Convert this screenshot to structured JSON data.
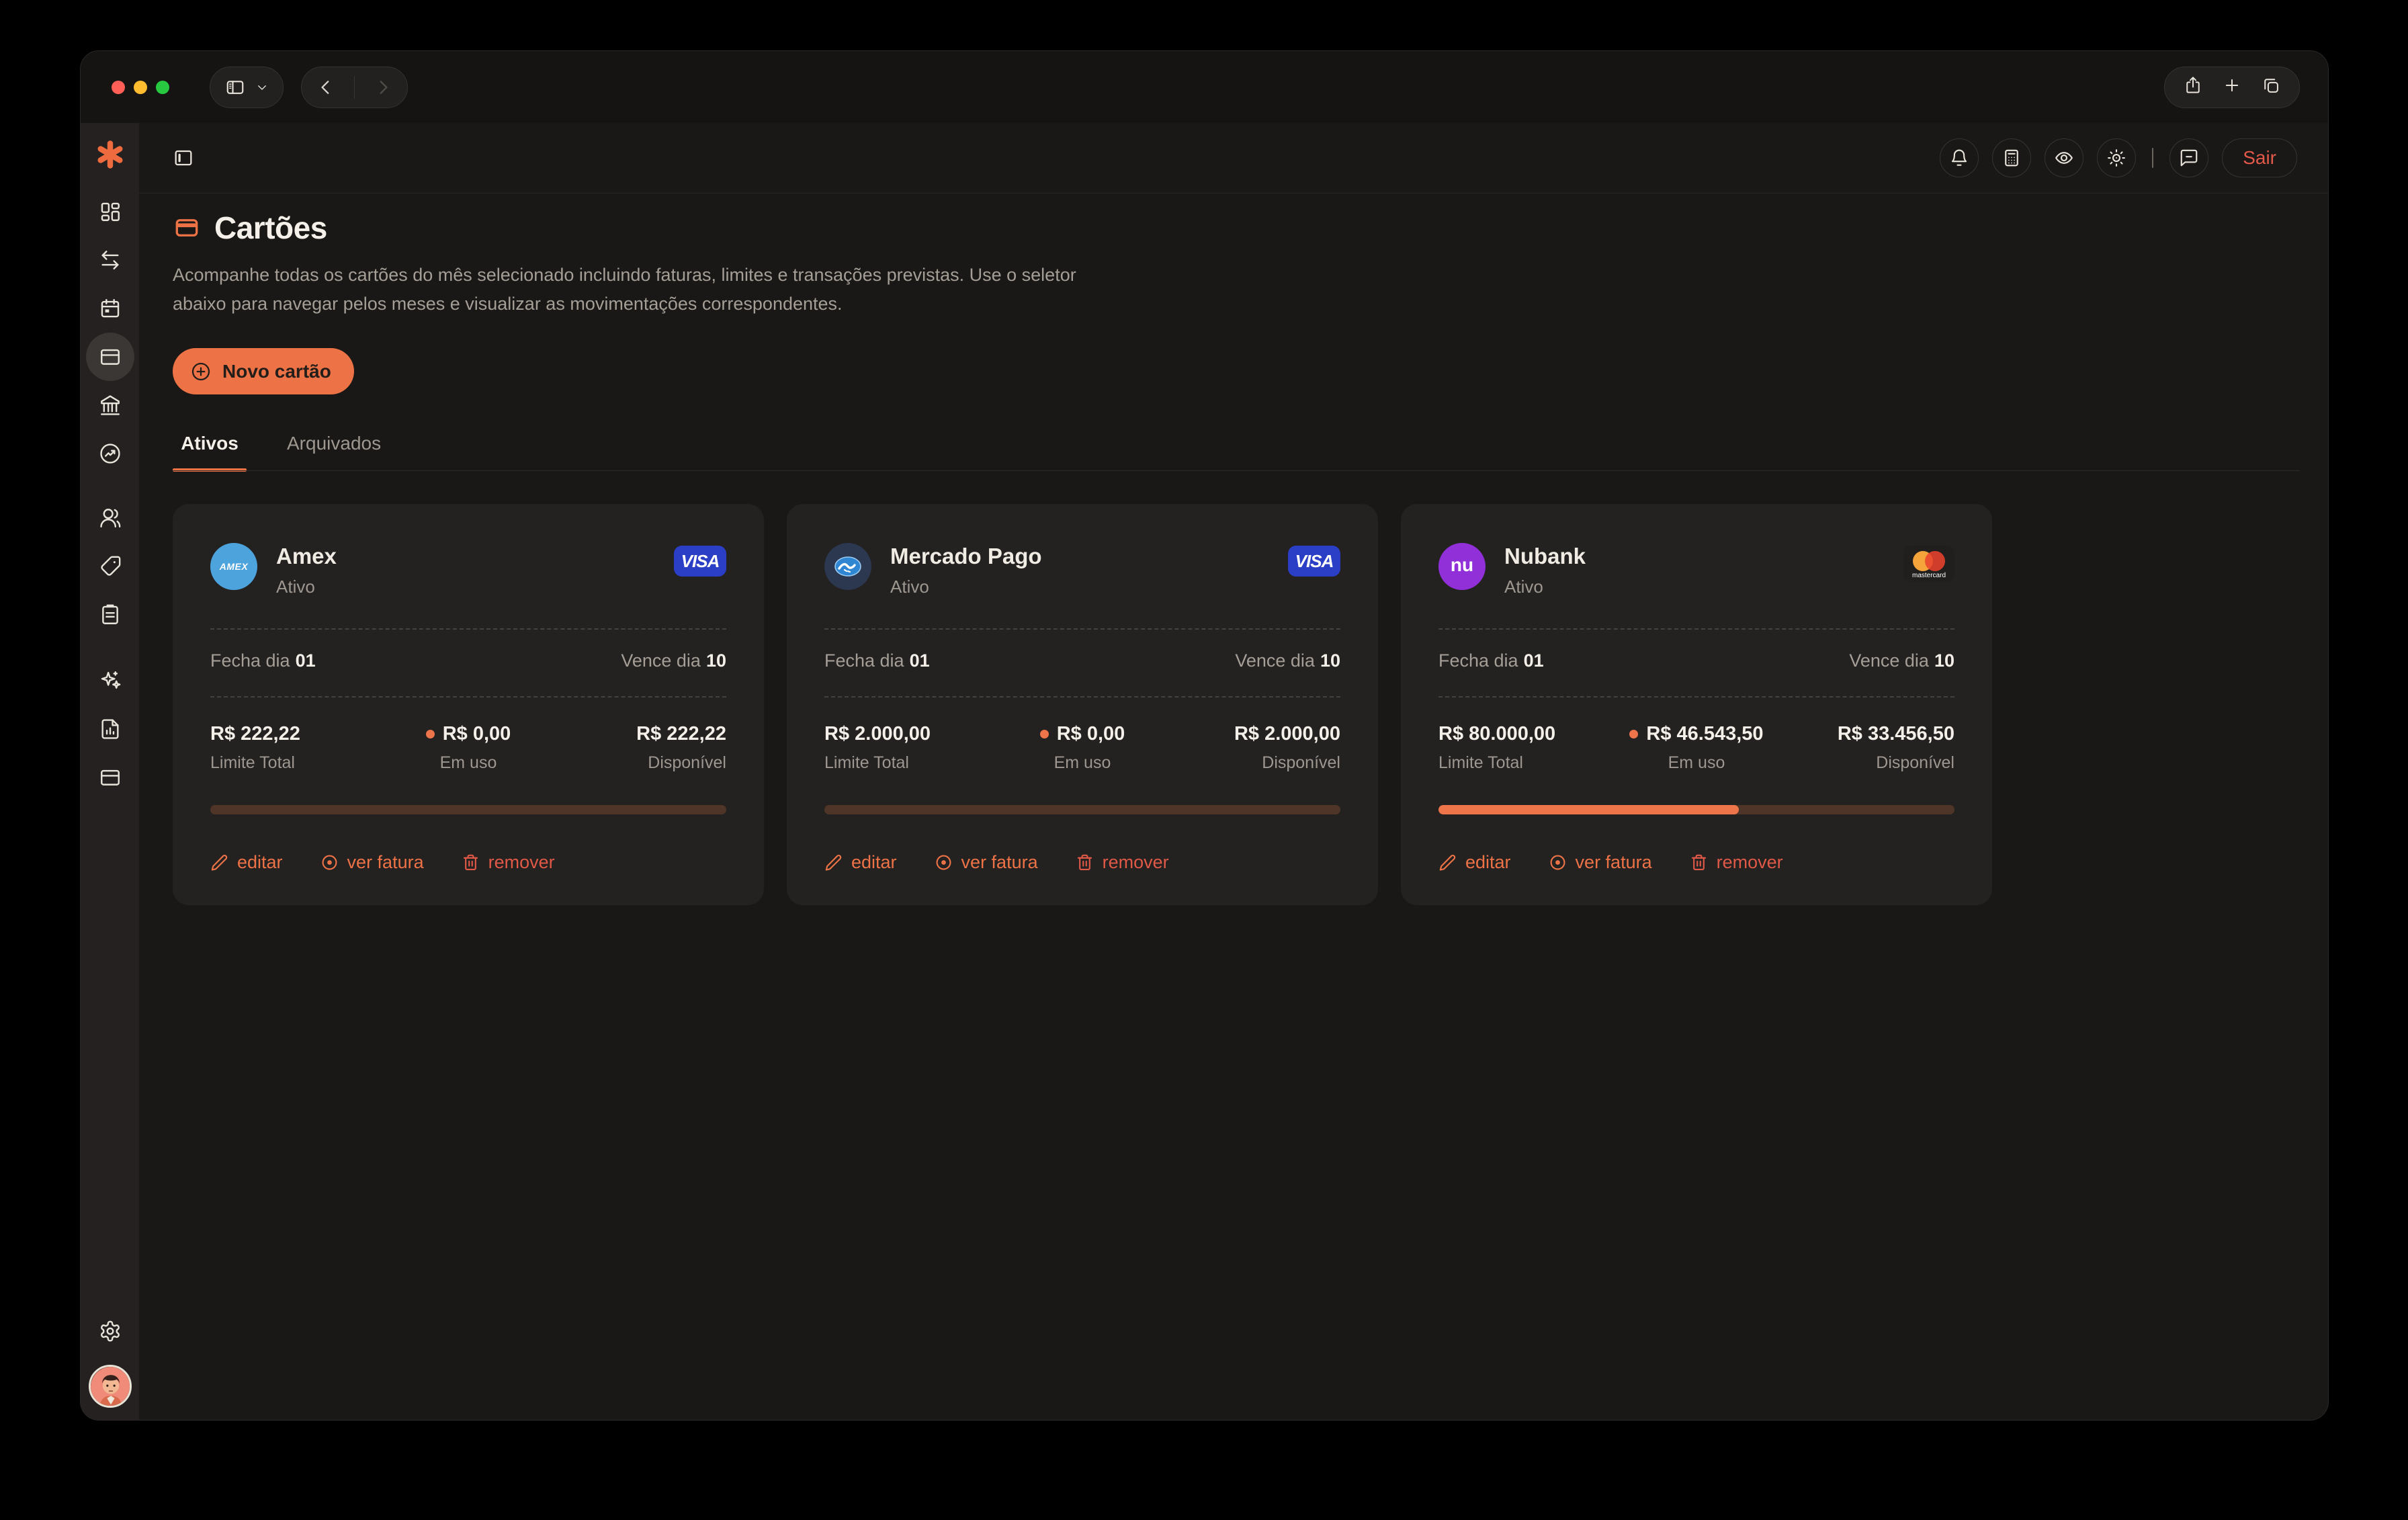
{
  "titlebar": {
    "left_icons": [
      "sidebar-toggle-icon",
      "chevron-down-icon",
      "back-icon",
      "forward-icon"
    ],
    "right_icons": [
      "share-icon",
      "new-tab-icon",
      "tab-overview-icon"
    ],
    "window_buttons": [
      "close",
      "minimize",
      "maximize"
    ]
  },
  "header": {
    "icons": [
      "bell-icon",
      "calculator-icon",
      "eye-icon",
      "theme-sun-icon",
      "chat-icon"
    ],
    "logout_label": "Sair"
  },
  "sidebar": {
    "icons": [
      "logo-asterisk",
      "dashboard",
      "transfers",
      "calendar",
      "cards",
      "bank",
      "performance",
      "users",
      "tags",
      "notes",
      "ai-sparkles",
      "reports",
      "subscriptions"
    ],
    "active_item": "cards",
    "footer_icons": [
      "settings",
      "user-avatar"
    ]
  },
  "page": {
    "title": "Cartões",
    "description": "Acompanhe todas os cartões do mês selecionado incluindo faturas, limites e transações previstas. Use o seletor abaixo para navegar pelos meses e visualizar as movimentações correspondentes.",
    "new_card_label": "Novo cartão",
    "tabs": [
      {
        "label": "Ativos",
        "active": true
      },
      {
        "label": "Arquivados",
        "active": false
      }
    ]
  },
  "cards": [
    {
      "name": "Amex",
      "status": "Ativo",
      "avatar_text": "AMEX",
      "avatar_color": "#4DA3DC",
      "brand": "visa",
      "brand_label": "VISA",
      "close_label": "Fecha dia",
      "close_day": "01",
      "due_label": "Vence dia",
      "due_day": "10",
      "limit_value": "R$ 222,22",
      "limit_label": "Limite Total",
      "used_value": "R$ 0,00",
      "used_label": "Em uso",
      "available_value": "R$ 222,22",
      "available_label": "Disponível",
      "progress_pct": 0,
      "actions": {
        "edit": "editar",
        "invoice": "ver fatura",
        "remove": "remover"
      }
    },
    {
      "name": "Mercado Pago",
      "status": "Ativo",
      "avatar_color": "#2B3850",
      "brand": "visa",
      "brand_label": "VISA",
      "close_label": "Fecha dia",
      "close_day": "01",
      "due_label": "Vence dia",
      "due_day": "10",
      "limit_value": "R$ 2.000,00",
      "limit_label": "Limite Total",
      "used_value": "R$ 0,00",
      "used_label": "Em uso",
      "available_value": "R$ 2.000,00",
      "available_label": "Disponível",
      "progress_pct": 0,
      "actions": {
        "edit": "editar",
        "invoice": "ver fatura",
        "remove": "remover"
      }
    },
    {
      "name": "Nubank",
      "status": "Ativo",
      "avatar_text": "nu",
      "avatar_color": "#9130D9",
      "brand": "mastercard",
      "brand_label": "mastercard",
      "close_label": "Fecha dia",
      "close_day": "01",
      "due_label": "Vence dia",
      "due_day": "10",
      "limit_value": "R$ 80.000,00",
      "limit_label": "Limite Total",
      "used_value": "R$ 46.543,50",
      "used_label": "Em uso",
      "available_value": "R$ 33.456,50",
      "available_label": "Disponível",
      "progress_pct": 58.2,
      "actions": {
        "edit": "editar",
        "invoice": "ver fatura",
        "remove": "remover"
      }
    }
  ],
  "colors": {
    "accent": "#ED7347",
    "danger": "#E05947",
    "visa_blue": "#2B3EC6",
    "mastercard_red": "#E8432E",
    "mastercard_yellow": "#F5A33B",
    "progress_track": "#4E3527",
    "card_bg": "#242121",
    "page_bg": "#1A1816"
  }
}
